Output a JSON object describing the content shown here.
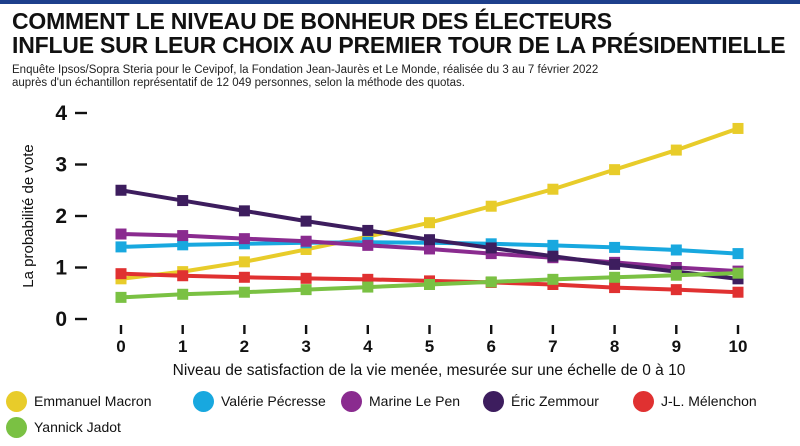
{
  "header": {
    "title_line1": "COMMENT LE NIVEAU DE BONHEUR DES ÉLECTEURS",
    "title_line2": "INFLUE SUR LEUR CHOIX AU PREMIER TOUR DE LA PRÉSIDENTIELLE",
    "subtitle_line1": "Enquête Ipsos/Sopra Steria pour le Cevipof, la Fondation Jean-Jaurès et Le Monde, réalisée du 3 au 7 février 2022",
    "subtitle_line2": "auprès d'un échantillon représentatif de 12 049 personnes, selon la méthode des quotas."
  },
  "colors": {
    "accent_rule": "#1d3f8c"
  },
  "chart_data": {
    "type": "line",
    "xlabel": "Niveau de satisfaction de la vie menée, mesurée sur une échelle de 0 à 10",
    "ylabel": "La probabilité de vote",
    "x": [
      0,
      1,
      2,
      3,
      4,
      5,
      6,
      7,
      8,
      9,
      10
    ],
    "xlim": [
      0,
      10
    ],
    "ylim": [
      0,
      4
    ],
    "yticks": [
      0,
      1,
      2,
      3,
      4
    ],
    "grid": false,
    "legend_position": "bottom",
    "marker": "square",
    "series": [
      {
        "name": "Emmanuel Macron",
        "color": "#e8cc2a",
        "values": [
          0.78,
          0.92,
          1.11,
          1.35,
          1.6,
          1.87,
          2.19,
          2.52,
          2.9,
          3.28,
          3.7
        ]
      },
      {
        "name": "Valérie Pécresse",
        "color": "#18a8df",
        "values": [
          1.4,
          1.44,
          1.46,
          1.48,
          1.49,
          1.48,
          1.46,
          1.43,
          1.39,
          1.34,
          1.27
        ]
      },
      {
        "name": "Marine Le Pen",
        "color": "#8a2b8f",
        "values": [
          1.65,
          1.62,
          1.56,
          1.51,
          1.43,
          1.36,
          1.27,
          1.19,
          1.1,
          1.0,
          0.93
        ]
      },
      {
        "name": "Éric Zemmour",
        "color": "#3d1d5e",
        "values": [
          2.5,
          2.3,
          2.1,
          1.9,
          1.72,
          1.54,
          1.38,
          1.22,
          1.06,
          0.92,
          0.78
        ]
      },
      {
        "name": "J-L. Mélenchon",
        "color": "#e03131",
        "values": [
          0.88,
          0.84,
          0.81,
          0.79,
          0.77,
          0.74,
          0.71,
          0.67,
          0.61,
          0.57,
          0.52
        ]
      },
      {
        "name": "Yannick Jadot",
        "color": "#7ac143",
        "values": [
          0.42,
          0.48,
          0.52,
          0.57,
          0.62,
          0.67,
          0.72,
          0.77,
          0.81,
          0.85,
          0.89
        ]
      }
    ]
  }
}
